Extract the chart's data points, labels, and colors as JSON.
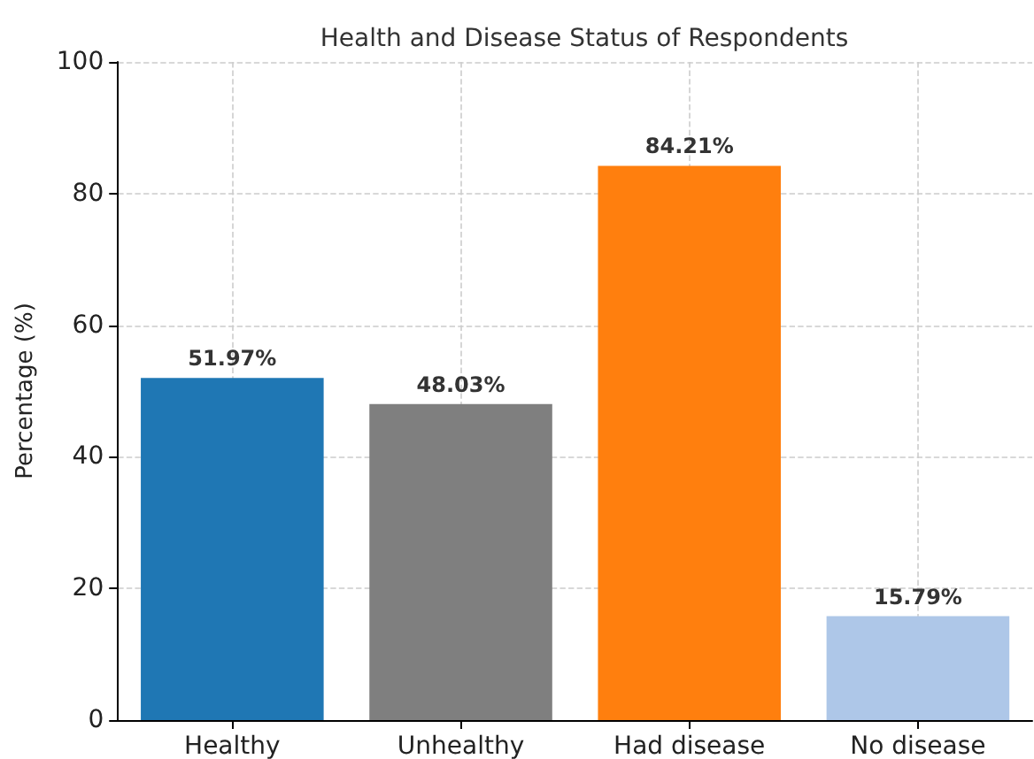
{
  "chart_data": {
    "type": "bar",
    "title": "Health and Disease Status of Respondents",
    "ylabel": "Percentage (%)",
    "categories": [
      "Healthy",
      "Unhealthy",
      "Had disease",
      "No disease"
    ],
    "values": [
      51.97,
      48.03,
      84.21,
      15.79
    ],
    "colors": [
      "#1f77b4",
      "#7f7f7f",
      "#ff7f0e",
      "#aec7e8"
    ],
    "value_labels": [
      "51.97%",
      "48.03%",
      "84.21%",
      "15.79%"
    ],
    "ylim": [
      0,
      100
    ],
    "yticks": [
      0,
      20,
      40,
      60,
      80,
      100
    ],
    "grid": true
  }
}
